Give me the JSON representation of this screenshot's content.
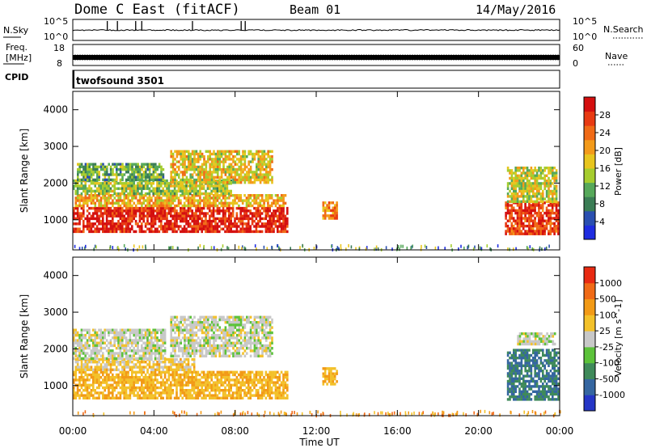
{
  "header": {
    "title": "Dome C East (fitACF)",
    "beam": "Beam 01",
    "date": "14/May/2016"
  },
  "status_panels": {
    "nsky_label": "N.Sky",
    "nsky_ticks": [
      "10^5",
      "10^0"
    ],
    "nsearch_label": "N.Search",
    "nsearch_ticks": [
      "10^5",
      "10^0"
    ],
    "freq_label_line1": "Freq.",
    "freq_label_line2": "[MHz]",
    "freq_ticks": [
      "18",
      "8"
    ],
    "nave_label": "Nave",
    "nave_ticks": [
      "60",
      "0"
    ],
    "cpid_label": "CPID",
    "cpid_value": "twofsound 3501"
  },
  "chart_data": [
    {
      "type": "heatmap",
      "name": "power",
      "ylabel": "Slant Range [km]",
      "y_ticks": [
        "4000",
        "3000",
        "2000",
        "1000"
      ],
      "ylim": [
        180,
        4500
      ],
      "colorbar_label": "Power [dB]",
      "colorbar_ticks": [
        "28",
        "24",
        "20",
        "16",
        "12",
        "8",
        "4"
      ],
      "colorbar_colors": [
        "#1f2de0",
        "#2a4fb0",
        "#3b7d55",
        "#56a85a",
        "#a6cd2e",
        "#e8c51e",
        "#f39a1a",
        "#f06a16",
        "#e83a12",
        "#d40f0f"
      ],
      "regions": [
        {
          "t0": 0.0,
          "t1": 10.6,
          "r0": 650,
          "r1": 1350,
          "level": 0.92
        },
        {
          "t0": 0.1,
          "t1": 10.5,
          "r0": 1350,
          "r1": 1700,
          "level": 0.62
        },
        {
          "t0": 0.0,
          "t1": 7.8,
          "r0": 1700,
          "r1": 2100,
          "level": 0.45
        },
        {
          "t0": 0.2,
          "t1": 4.5,
          "r0": 2100,
          "r1": 2550,
          "level": 0.35
        },
        {
          "t0": 4.8,
          "t1": 9.8,
          "r0": 2050,
          "r1": 2900,
          "level": 0.55
        },
        {
          "t0": 12.3,
          "t1": 13.0,
          "r0": 1050,
          "r1": 1500,
          "level": 0.7
        },
        {
          "t0": 21.3,
          "t1": 23.9,
          "r0": 600,
          "r1": 1500,
          "level": 0.85
        },
        {
          "t0": 21.4,
          "t1": 23.8,
          "r0": 1500,
          "r1": 2450,
          "level": 0.5
        }
      ]
    },
    {
      "type": "heatmap",
      "name": "velocity",
      "ylabel": "Slant Range [km]",
      "y_ticks": [
        "4000",
        "3000",
        "2000",
        "1000"
      ],
      "ylim": [
        180,
        4500
      ],
      "colorbar_label": "Velocity [m s^-1]",
      "colorbar_ticks": [
        "1000",
        "500",
        "100",
        "25",
        "-25",
        "-100",
        "-500",
        "-1000"
      ],
      "colorbar_colors": [
        "#2536c6",
        "#3566a0",
        "#3f8a5a",
        "#5cc23a",
        "#c8c8c8",
        "#f3c12a",
        "#f29a16",
        "#f06a16",
        "#e82a12"
      ],
      "regions": [
        {
          "t0": 0.0,
          "t1": 10.6,
          "r0": 650,
          "r1": 1400,
          "level": -0.3
        },
        {
          "t0": 0.1,
          "t1": 6.0,
          "r0": 1400,
          "r1": 1750,
          "level": -0.2
        },
        {
          "t0": 0.0,
          "t1": 4.5,
          "r0": 1750,
          "r1": 2550,
          "level": 0.0
        },
        {
          "t0": 4.8,
          "t1": 9.8,
          "r0": 1800,
          "r1": 2900,
          "level": 0.0
        },
        {
          "t0": 12.3,
          "t1": 13.0,
          "r0": 1050,
          "r1": 1500,
          "level": -0.3
        },
        {
          "t0": 21.4,
          "t1": 23.9,
          "r0": 650,
          "r1": 2000,
          "level": 0.55
        },
        {
          "t0": 21.9,
          "t1": 23.8,
          "r0": 2100,
          "r1": 2450,
          "level": 0.0
        }
      ]
    }
  ],
  "x_axis": {
    "label": "Time UT",
    "ticks": [
      "00:00",
      "04:00",
      "08:00",
      "12:00",
      "16:00",
      "20:00",
      "00:00"
    ],
    "range_hours": [
      0,
      24
    ]
  }
}
